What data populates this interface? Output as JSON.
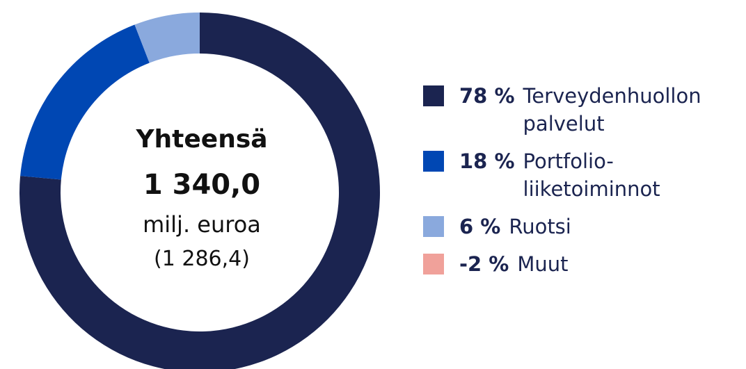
{
  "chart_data": {
    "type": "donut",
    "center_text": [
      "Yhteensä",
      "1 340,0",
      "milj. euroa",
      "(1 286,4)"
    ],
    "series": [
      {
        "name": "Terveydenhuollon palvelut",
        "color": "#1b2450",
        "values": [
          78
        ],
        "value_labels": [
          "78 %"
        ]
      },
      {
        "name": "Portfolio-liiketoiminnot",
        "color": "#0047b3",
        "values": [
          18
        ],
        "value_labels": [
          "18 %"
        ]
      },
      {
        "name": "Ruotsi",
        "color": "#8aa9dd",
        "values": [
          6
        ],
        "value_labels": [
          "6 %"
        ]
      },
      {
        "name": "Muut",
        "color": "#f0a19a",
        "values": [
          -2
        ],
        "value_labels": [
          "-2 %"
        ]
      }
    ],
    "legend": "right"
  }
}
